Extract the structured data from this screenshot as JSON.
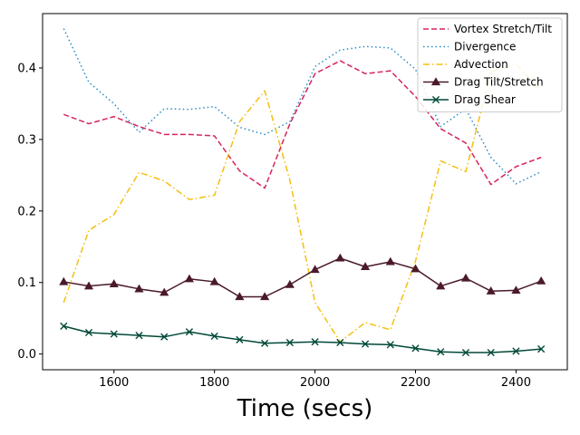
{
  "chart_data": {
    "type": "line",
    "title": "",
    "xlabel": "Time (secs)",
    "ylabel": "",
    "xlim": [
      1458,
      2502
    ],
    "ylim": [
      -0.022,
      0.476
    ],
    "x_ticks": [
      1600,
      1800,
      2000,
      2200,
      2400
    ],
    "x_tick_labels": [
      "1600",
      "1800",
      "2000",
      "2200",
      "2400"
    ],
    "y_ticks": [
      0.0,
      0.1,
      0.2,
      0.3,
      0.4
    ],
    "y_tick_labels": [
      "0.0",
      "0.1",
      "0.2",
      "0.3",
      "0.4"
    ],
    "grid": false,
    "legend_position": "top-right",
    "x": [
      1500,
      1550,
      1600,
      1650,
      1700,
      1750,
      1800,
      1850,
      1900,
      1950,
      2000,
      2050,
      2100,
      2150,
      2200,
      2250,
      2300,
      2350,
      2400,
      2450
    ],
    "series": [
      {
        "name": "Vortex Stretch/Tilt",
        "color": "#d6245a",
        "style": "dashed",
        "marker": "none",
        "values": [
          0.335,
          0.322,
          0.332,
          0.318,
          0.307,
          0.307,
          0.305,
          0.256,
          0.232,
          0.322,
          0.392,
          0.41,
          0.392,
          0.396,
          0.36,
          0.315,
          0.295,
          0.237,
          0.262,
          0.275
        ]
      },
      {
        "name": "Divergence",
        "color": "#2a8cc8",
        "style": "dotted",
        "marker": "none",
        "values": [
          0.455,
          0.38,
          0.35,
          0.31,
          0.343,
          0.342,
          0.346,
          0.317,
          0.307,
          0.325,
          0.402,
          0.425,
          0.43,
          0.428,
          0.398,
          0.318,
          0.343,
          0.275,
          0.238,
          0.255
        ]
      },
      {
        "name": "Advection",
        "color": "#f5bf10",
        "style": "dashdot",
        "marker": "none",
        "values": [
          0.072,
          0.173,
          0.195,
          0.254,
          0.242,
          0.216,
          0.222,
          0.325,
          0.368,
          0.243,
          0.072,
          0.017,
          0.044,
          0.034,
          0.13,
          0.27,
          0.255,
          0.395,
          0.405,
          0.368
        ]
      },
      {
        "name": "Drag Tilt/Stretch",
        "color": "#4a1a2a",
        "style": "solid",
        "marker": "triangle",
        "values": [
          0.101,
          0.095,
          0.098,
          0.091,
          0.086,
          0.105,
          0.101,
          0.08,
          0.08,
          0.097,
          0.118,
          0.134,
          0.122,
          0.129,
          0.119,
          0.095,
          0.106,
          0.088,
          0.089,
          0.102
        ]
      },
      {
        "name": "Drag Shear",
        "color": "#004838",
        "style": "solid",
        "marker": "x",
        "values": [
          0.039,
          0.03,
          0.028,
          0.026,
          0.024,
          0.031,
          0.025,
          0.02,
          0.015,
          0.016,
          0.017,
          0.016,
          0.014,
          0.013,
          0.008,
          0.003,
          0.002,
          0.002,
          0.004,
          0.007
        ]
      }
    ]
  }
}
